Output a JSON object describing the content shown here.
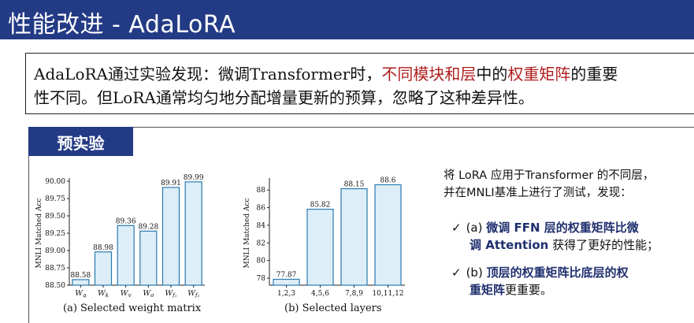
{
  "slide": {
    "title": "性能改进 - AdaLoRA"
  },
  "summary": {
    "line1_pre": "AdaLoRA通过实验发现：微调Transformer时，",
    "line1_red1": "不同模块和层",
    "line1_mid": "中的",
    "line1_red2": "权重矩阵",
    "line1_post": "的重要",
    "line2": "性不同。但LoRA通常均匀地分配增量更新的预算，忽略了这种差异性。"
  },
  "section": {
    "tab_label": "预实验"
  },
  "description": {
    "line1": "将 LoRA 应用于Transformer 的不同层，",
    "line2": "并在MNLI基准上进行了测试，发现："
  },
  "findings": [
    {
      "check": "✓",
      "prefix": "(a) ",
      "bold1": "微调 FFN 层的权重矩阵比微",
      "bold2": "调 Attention",
      "tail": " 获得了更好的性能；"
    },
    {
      "check": "✓",
      "prefix": "(b) ",
      "bold1": "顶层的权重矩阵比底层的权",
      "bold2": "重矩阵",
      "tail": "更重要。"
    }
  ],
  "chart_data": [
    {
      "type": "bar",
      "caption": "(a) Selected weight matrix",
      "ylabel": "MNLI Matched Acc",
      "ylim": [
        88.5,
        90.0
      ],
      "yticks": [
        "88.50",
        "88.75",
        "89.00",
        "89.25",
        "89.50",
        "89.75",
        "90.00"
      ],
      "categories": [
        "W_q",
        "W_k",
        "W_v",
        "W_o",
        "W_f1",
        "W_f2"
      ],
      "category_labels": [
        {
          "main": "W",
          "sub": "q"
        },
        {
          "main": "W",
          "sub": "k"
        },
        {
          "main": "W",
          "sub": "v"
        },
        {
          "main": "W",
          "sub": "o"
        },
        {
          "main": "W",
          "sub": "f₁"
        },
        {
          "main": "W",
          "sub": "f₂"
        }
      ],
      "values": [
        88.58,
        88.98,
        89.36,
        89.28,
        89.91,
        89.99
      ],
      "value_labels": [
        "88.58",
        "88.98",
        "89.36",
        "89.28",
        "89.91",
        "89.99"
      ],
      "bar_color": "#ddeef8",
      "edge_color": "#2a7ab0"
    },
    {
      "type": "bar",
      "caption": "(b) Selected layers",
      "ylabel": "MNLI Matched Acc",
      "ylim": [
        77.2,
        89
      ],
      "yticks": [
        "78",
        "80",
        "82",
        "84",
        "86",
        "88"
      ],
      "categories": [
        "1,2,3",
        "4,5,6",
        "7,8,9",
        "10,11,12"
      ],
      "values": [
        77.87,
        85.82,
        88.15,
        88.6
      ],
      "value_labels": [
        "77.87",
        "85.82",
        "88.15",
        "88.6"
      ],
      "bar_color": "#ddeef8",
      "edge_color": "#2a7ab0"
    }
  ]
}
